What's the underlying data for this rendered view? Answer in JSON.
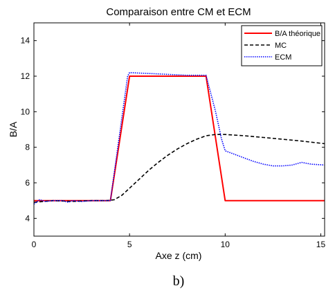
{
  "chart_data": {
    "type": "line",
    "title": "Comparaison entre CM et ECM",
    "xlabel": "Axe z (cm)",
    "ylabel": "B/A",
    "xlim": [
      0,
      15.2
    ],
    "ylim": [
      3,
      15
    ],
    "xticks": [
      0,
      5,
      10,
      15
    ],
    "yticks": [
      4,
      6,
      8,
      10,
      12,
      14
    ],
    "grid": false,
    "legend_position": "top-right",
    "series": [
      {
        "name": "B/A théorique",
        "color": "#ff0000",
        "style": "solid",
        "x": [
          0,
          4,
          5,
          9,
          10,
          15.2
        ],
        "y": [
          5,
          5,
          12,
          12,
          5,
          5
        ]
      },
      {
        "name": "MC",
        "color": "#000000",
        "style": "dashed",
        "x": [
          0,
          1,
          2,
          3,
          3.8,
          4.2,
          4.6,
          5,
          5.5,
          6,
          6.5,
          7,
          7.5,
          8,
          8.5,
          9,
          9.5,
          10,
          11,
          12,
          13,
          14,
          15.2
        ],
        "y": [
          4.9,
          5.0,
          4.95,
          5.0,
          5.0,
          5.05,
          5.3,
          5.7,
          6.2,
          6.7,
          7.15,
          7.55,
          7.9,
          8.2,
          8.45,
          8.65,
          8.72,
          8.72,
          8.65,
          8.55,
          8.45,
          8.35,
          8.2
        ]
      },
      {
        "name": "ECM",
        "color": "#0000ff",
        "style": "dotted",
        "x": [
          0,
          0.3,
          0.6,
          1,
          1.5,
          1.8,
          2,
          2.5,
          3,
          3.5,
          4,
          4.9,
          5,
          6,
          7,
          8,
          9,
          9.5,
          9.8,
          10,
          10.5,
          11,
          11.5,
          12,
          12.5,
          13,
          13.5,
          14,
          14.5,
          15.2
        ],
        "y": [
          4.8,
          5.05,
          4.95,
          5.0,
          5.0,
          4.9,
          5.0,
          4.95,
          5.0,
          5.0,
          5.0,
          12.0,
          12.2,
          12.15,
          12.1,
          12.05,
          12.05,
          10.0,
          8.5,
          7.8,
          7.6,
          7.4,
          7.2,
          7.05,
          6.95,
          6.95,
          7.0,
          7.15,
          7.05,
          7.0
        ]
      }
    ]
  },
  "caption": "b)"
}
